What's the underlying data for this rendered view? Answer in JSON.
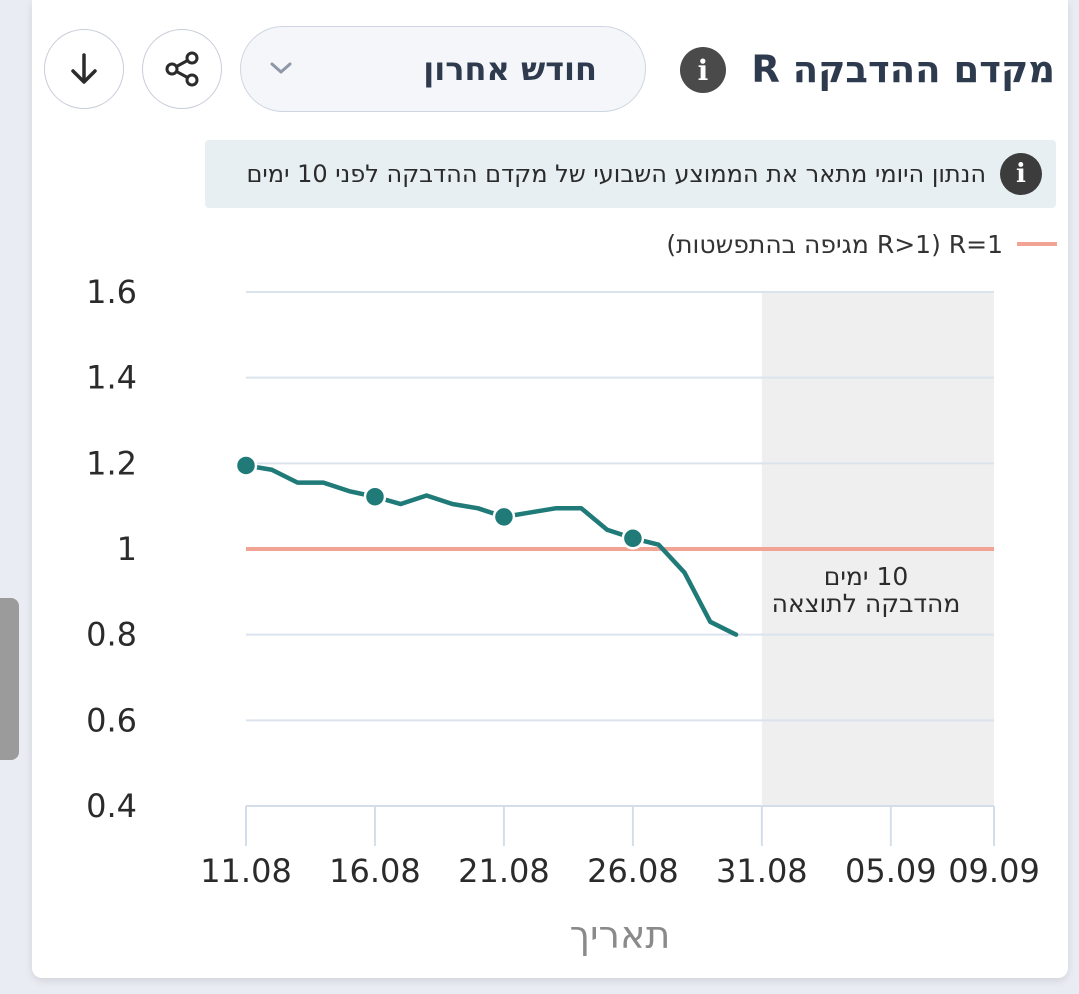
{
  "header": {
    "title": "מקדם ההדבקה R",
    "period_selected": "חודש אחרון",
    "icons": {
      "info": "info-icon",
      "dropdown": "chevron-down-icon",
      "share": "share-icon",
      "download": "download-icon"
    }
  },
  "note": {
    "text": "הנתון היומי מתאר את הממוצע השבועי של מקדם ההדבקה לפני 10 ימים"
  },
  "legend": {
    "label": "R=1 (R>1 מגיפה בהתפשטות)",
    "color": "#f2a494"
  },
  "chart_data": {
    "type": "line",
    "xlabel": "תאריך",
    "ylim": [
      0.4,
      1.6
    ],
    "yticks": [
      "1.6",
      "1.4",
      "1.2",
      "1",
      "0.8",
      "0.6",
      "0.4"
    ],
    "xticks": [
      "11.08",
      "16.08",
      "21.08",
      "26.08",
      "31.08",
      "05.09",
      "09.09"
    ],
    "grid": true,
    "reference_line": {
      "y": 1.0,
      "color": "#f2a494"
    },
    "shaded_region": {
      "from": "31.08",
      "to": "09.09",
      "color": "#efefef"
    },
    "annotation": {
      "line1": "10 ימים",
      "line2": "מהדבקה לתוצאה"
    },
    "series": [
      {
        "color": "#1f7a78",
        "x": [
          "11.08",
          "12.08",
          "13.08",
          "14.08",
          "15.08",
          "16.08",
          "17.08",
          "18.08",
          "19.08",
          "20.08",
          "21.08",
          "22.08",
          "23.08",
          "24.08",
          "25.08",
          "26.08",
          "27.08",
          "28.08",
          "29.08",
          "30.08"
        ],
        "values": [
          1.195,
          1.185,
          1.155,
          1.155,
          1.135,
          1.122,
          1.105,
          1.125,
          1.105,
          1.095,
          1.075,
          1.085,
          1.095,
          1.095,
          1.045,
          1.025,
          1.01,
          0.945,
          0.83,
          0.8
        ]
      }
    ],
    "markers_at": [
      "11.08",
      "16.08",
      "21.08",
      "26.08"
    ]
  }
}
